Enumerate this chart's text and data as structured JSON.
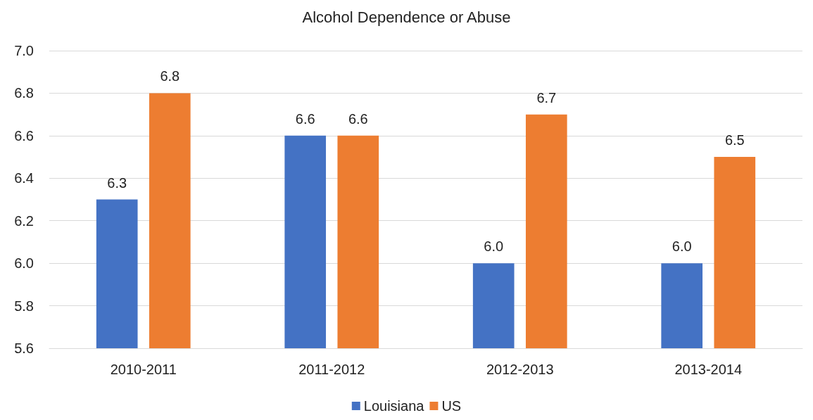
{
  "chart_data": {
    "type": "bar",
    "title": "Alcohol Dependence or Abuse",
    "categories": [
      "2010-2011",
      "2011-2012",
      "2012-2013",
      "2013-2014"
    ],
    "series": [
      {
        "name": "Louisiana",
        "color": "#4472c4",
        "values": [
          6.3,
          6.6,
          6.0,
          6.0
        ],
        "value_labels": [
          "6.3",
          "6.6",
          "6.0",
          "6.0"
        ]
      },
      {
        "name": "US",
        "color": "#ed7d31",
        "values": [
          6.8,
          6.6,
          6.7,
          6.5
        ],
        "value_labels": [
          "6.8",
          "6.6",
          "6.7",
          "6.5"
        ]
      }
    ],
    "ylim": [
      5.6,
      7.0
    ],
    "yticks": [
      {
        "value": 5.6,
        "label": "5.6"
      },
      {
        "value": 5.8,
        "label": "5.8"
      },
      {
        "value": 6.0,
        "label": "6.0"
      },
      {
        "value": 6.2,
        "label": "6.2"
      },
      {
        "value": 6.4,
        "label": "6.4"
      },
      {
        "value": 6.6,
        "label": "6.6"
      },
      {
        "value": 6.8,
        "label": "6.8"
      },
      {
        "value": 7.0,
        "label": "7.0"
      }
    ],
    "grid": "y",
    "legend": "bottom"
  }
}
